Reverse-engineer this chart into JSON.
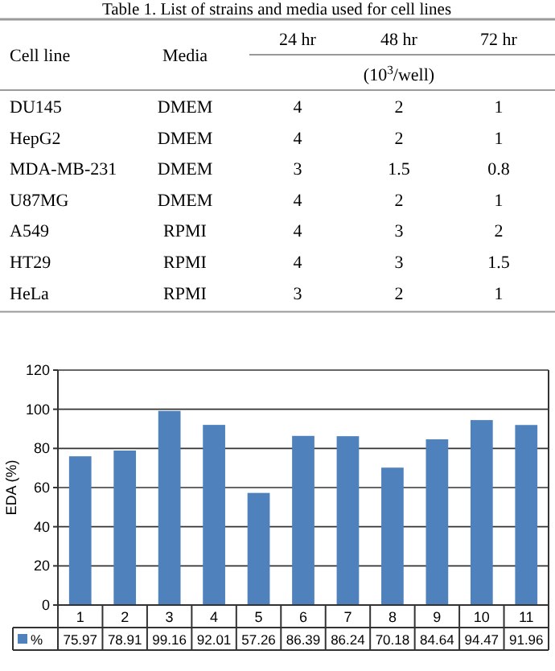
{
  "chart_data": [
    {
      "type": "other",
      "title": "Table 1. List of strains and media used for cell lines",
      "categories": [
        "Cell line",
        "Media",
        "24 hr",
        "48 hr",
        "72 hr"
      ],
      "subtitle": "(10$^{3}$/well)",
      "cell_labels": [
        [
          "DU145",
          "DMEM",
          "4",
          "2",
          "1"
        ],
        [
          "HepG2",
          "DMEM",
          "4",
          "2",
          "1"
        ],
        [
          "MDA-MB-231",
          "DMEM",
          "3",
          "1.5",
          "0.8"
        ],
        [
          "U87MG",
          "DMEM",
          "4",
          "2",
          "1"
        ],
        [
          "A549",
          "RPMI",
          "4",
          "3",
          "2"
        ],
        [
          "HT29",
          "RPMI",
          "4",
          "3",
          "1.5"
        ],
        [
          "HeLa",
          "RPMI",
          "3",
          "2",
          "1"
        ]
      ]
    },
    {
      "type": "bar",
      "ylabel": "EDA (%)",
      "categories": [
        "1",
        "2",
        "3",
        "4",
        "5",
        "6",
        "7",
        "8",
        "9",
        "10",
        "11"
      ],
      "series": [
        {
          "name": "%",
          "color": "#4f81bd",
          "values": [
            75.97,
            78.91,
            99.16,
            92.01,
            57.26,
            86.39,
            86.24,
            70.18,
            84.64,
            94.47,
            91.96
          ]
        }
      ],
      "ylim": [
        0,
        120
      ],
      "yticks": [
        0,
        20,
        40,
        60,
        80,
        100,
        120
      ],
      "grid": "y",
      "data_labels": true,
      "legend": "bottom"
    }
  ]
}
